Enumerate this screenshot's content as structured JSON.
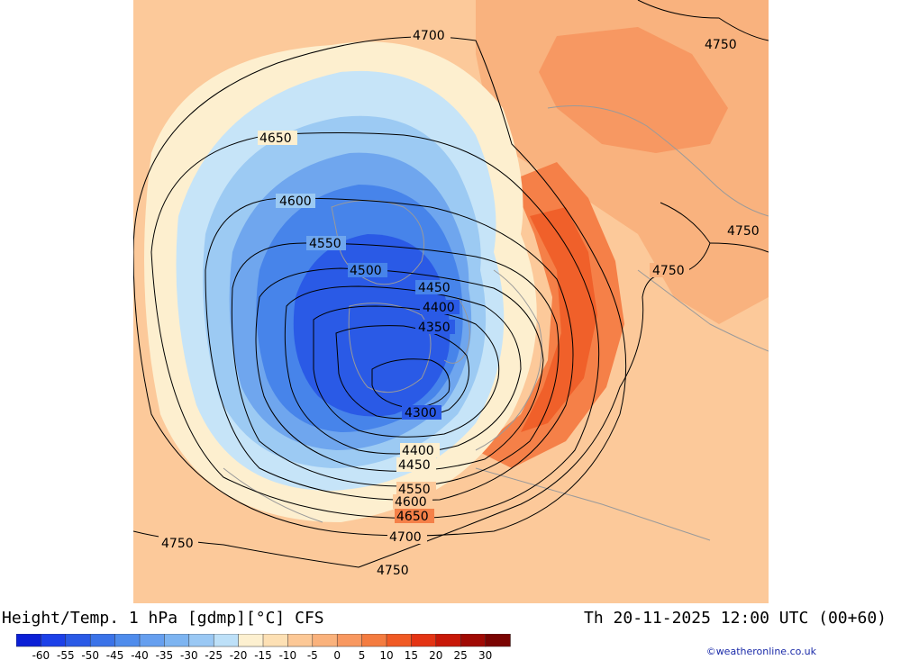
{
  "title": "Height/Temp. 1 hPa [gdmp][°C] CFS",
  "valid_time": "Th 20-11-2025 12:00 UTC (00+60)",
  "credit": "©weatheronline.co.uk",
  "contour_labels": [
    "4700",
    "4750",
    "4650",
    "4600",
    "4550",
    "4500",
    "4450",
    "4400",
    "4350",
    "4300"
  ],
  "colorbar": {
    "ticks": [
      "-60",
      "-55",
      "-50",
      "-45",
      "-40",
      "-35",
      "-30",
      "-25",
      "-20",
      "-15",
      "-10",
      "-5",
      "0",
      "5",
      "10",
      "15",
      "20",
      "25",
      "30"
    ],
    "colors": [
      "#0b1fd6",
      "#1c40e8",
      "#2a5ae6",
      "#3b73e8",
      "#4f8cec",
      "#669fef",
      "#7db4f1",
      "#9ac8f4",
      "#bde0f8",
      "#fdf0d0",
      "#fde0b4",
      "#fcc896",
      "#fab27c",
      "#f89860",
      "#f47c40",
      "#f05a24",
      "#e43414",
      "#c81808",
      "#a00a04",
      "#7a0402"
    ]
  }
}
